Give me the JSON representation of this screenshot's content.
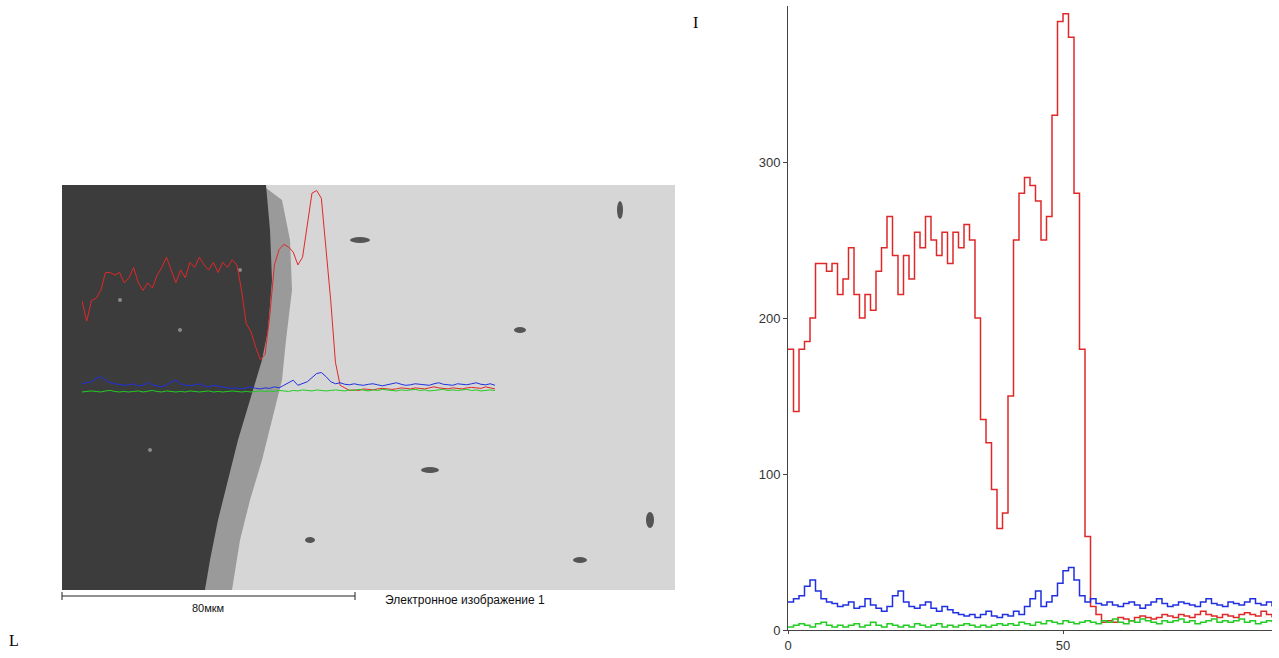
{
  "chart_data": {
    "type": "line",
    "xlabel": "L",
    "ylabel": "I",
    "x": [
      0,
      1,
      2,
      3,
      4,
      5,
      6,
      7,
      8,
      9,
      10,
      11,
      12,
      13,
      14,
      15,
      16,
      17,
      18,
      19,
      20,
      21,
      22,
      23,
      24,
      25,
      26,
      27,
      28,
      29,
      30,
      31,
      32,
      33,
      34,
      35,
      36,
      37,
      38,
      39,
      40,
      41,
      42,
      43,
      44,
      45,
      46,
      47,
      48,
      49,
      50,
      51,
      52,
      53,
      54,
      55,
      56,
      57,
      58,
      59,
      60,
      61,
      62,
      63,
      64,
      65,
      66,
      67,
      68,
      69,
      70,
      71,
      72,
      73,
      74,
      75,
      76,
      77,
      78,
      79,
      80,
      81,
      82,
      83,
      84,
      85,
      86,
      87,
      88
    ],
    "series": [
      {
        "color": "#e02828",
        "values": [
          180,
          140,
          180,
          185,
          200,
          235,
          235,
          230,
          235,
          215,
          225,
          245,
          215,
          200,
          215,
          205,
          230,
          245,
          265,
          240,
          215,
          240,
          225,
          255,
          245,
          265,
          250,
          240,
          255,
          235,
          255,
          245,
          260,
          250,
          200,
          135,
          120,
          90,
          65,
          75,
          150,
          250,
          280,
          290,
          285,
          275,
          250,
          265,
          330,
          390,
          395,
          380,
          280,
          180,
          60,
          15,
          10,
          5,
          6,
          5,
          8,
          7,
          6,
          8,
          9,
          8,
          7,
          8,
          10,
          9,
          8,
          10,
          9,
          8,
          10,
          12,
          10,
          9,
          8,
          10,
          9,
          8,
          10,
          11,
          10,
          9,
          12,
          10,
          8
        ]
      },
      {
        "color": "#2030e0",
        "values": [
          18,
          20,
          22,
          28,
          32,
          25,
          20,
          18,
          17,
          15,
          16,
          18,
          14,
          15,
          20,
          16,
          14,
          12,
          15,
          22,
          25,
          18,
          15,
          14,
          16,
          18,
          14,
          12,
          15,
          13,
          11,
          10,
          9,
          10,
          8,
          10,
          12,
          9,
          8,
          10,
          9,
          12,
          10,
          15,
          20,
          25,
          15,
          18,
          22,
          30,
          38,
          40,
          32,
          22,
          18,
          20,
          17,
          16,
          18,
          16,
          15,
          17,
          18,
          16,
          14,
          16,
          18,
          20,
          17,
          15,
          16,
          18,
          17,
          16,
          15,
          18,
          20,
          17,
          16,
          15,
          18,
          17,
          16,
          18,
          20,
          17,
          16,
          18,
          15
        ]
      },
      {
        "color": "#22cc22",
        "values": [
          2,
          3,
          4,
          3,
          2,
          4,
          5,
          3,
          2,
          3,
          2,
          3,
          4,
          2,
          3,
          5,
          3,
          2,
          4,
          3,
          2,
          3,
          2,
          4,
          3,
          2,
          3,
          4,
          2,
          3,
          2,
          3,
          4,
          3,
          2,
          3,
          2,
          3,
          4,
          3,
          4,
          3,
          5,
          4,
          3,
          5,
          4,
          6,
          5,
          4,
          6,
          5,
          4,
          5,
          6,
          5,
          4,
          6,
          5,
          7,
          5,
          4,
          6,
          5,
          7,
          6,
          5,
          4,
          6,
          5,
          6,
          7,
          5,
          6,
          4,
          5,
          6,
          7,
          5,
          6,
          5,
          6,
          7,
          5,
          6,
          4,
          5,
          6,
          5
        ]
      }
    ],
    "xlim": [
      0,
      88
    ],
    "ylim": [
      0,
      400
    ],
    "xticks": [
      0,
      50
    ],
    "yticks": [
      0,
      100,
      200,
      300
    ],
    "grid": false
  },
  "micrograph": {
    "scale_bar_label": "80мкм",
    "caption": "Электронное изображение 1"
  }
}
